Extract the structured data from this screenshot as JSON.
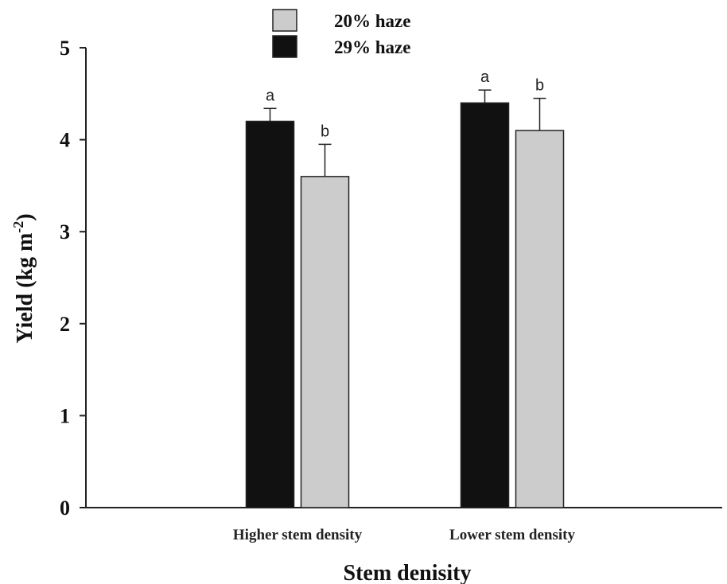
{
  "chart_data": {
    "type": "bar",
    "categories": [
      "Higher stem density",
      "Lower stem density"
    ],
    "series": [
      {
        "name": "29% haze",
        "color": "#111111",
        "values": [
          4.2,
          4.4
        ],
        "errors": [
          0.14,
          0.14
        ],
        "letters": [
          "a",
          "a"
        ]
      },
      {
        "name": "20% haze",
        "color": "#cccccc",
        "values": [
          3.6,
          4.1
        ],
        "errors": [
          0.35,
          0.35
        ],
        "letters": [
          "b",
          "b"
        ]
      }
    ],
    "legend_order": [
      "20% haze",
      "29% haze"
    ],
    "legend_placement": "top-center",
    "xlabel": "Stem denisity",
    "ylabel": "Yield (kg m",
    "ylabel_superscript": "-2",
    "ylabel_suffix": ")",
    "ylim": [
      0,
      5
    ],
    "yticks": [
      "0",
      "1",
      "2",
      "3",
      "4",
      "5"
    ],
    "grid": false
  }
}
